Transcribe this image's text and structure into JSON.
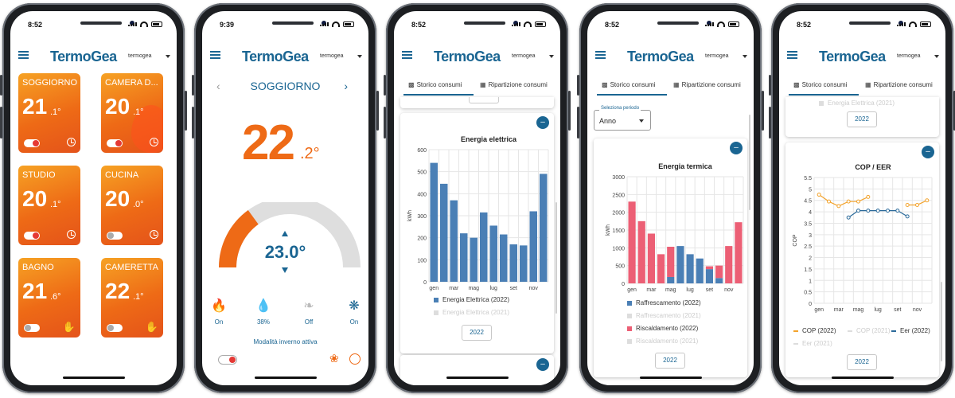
{
  "colors": {
    "brand": "#1a6592",
    "orange": "#ee6a16",
    "bar_blue": "#4a7fb5",
    "bar_pink": "#ec5f75",
    "line_orange": "#f3a32c",
    "line_blue": "#2b6a9a"
  },
  "app": {
    "logo": "TermoGea",
    "user": "termogea"
  },
  "phone1": {
    "time": "8:52",
    "rooms": [
      {
        "name": "SOGGIORNO",
        "temp": "21",
        "decimal": ".1°",
        "toggle": "on",
        "icon": "clock-icon"
      },
      {
        "name": "CAMERA D...",
        "temp": "20",
        "decimal": ".1°",
        "toggle": "on",
        "icon": "clock-icon"
      },
      {
        "name": "STUDIO",
        "temp": "20",
        "decimal": ".1°",
        "toggle": "on",
        "icon": "clock-icon"
      },
      {
        "name": "CUCINA",
        "temp": "20",
        "decimal": ".0°",
        "toggle": "off",
        "icon": "clock-icon"
      },
      {
        "name": "BAGNO",
        "temp": "21",
        "decimal": ".6°",
        "toggle": "off",
        "icon": "hand-icon"
      },
      {
        "name": "CAMERETTA",
        "temp": "22",
        "decimal": ".1°",
        "toggle": "off",
        "icon": "hand-icon"
      }
    ]
  },
  "phone2": {
    "time": "9:39",
    "room": "SOGGIORNO",
    "temp_int": "22",
    "temp_dec": ".2°",
    "setpoint": "23.0°",
    "setpoint_level": 0.3,
    "controls": [
      {
        "icon": "flame-icon",
        "label": "On"
      },
      {
        "icon": "droplet-icon",
        "label": "38%"
      },
      {
        "icon": "leaf-icon",
        "label": "Off"
      },
      {
        "icon": "fan-icon",
        "label": "On"
      }
    ],
    "mode": "Modalità inverno attiva"
  },
  "tabs": {
    "history": "Storico consumi",
    "breakdown": "Ripartizione consumi"
  },
  "phone3": {
    "time": "8:52",
    "year_button": "2022",
    "legend": [
      "Energia Elettrica (2022)",
      "Energia Elettrica (2021)"
    ],
    "chart_data": {
      "type": "bar",
      "title": "Energia elettrica",
      "ylabel": "kWh",
      "ylim": [
        0,
        600
      ],
      "yticks": [
        0,
        100,
        200,
        300,
        400,
        500,
        600
      ],
      "categories": [
        "gen",
        "feb",
        "mar",
        "apr",
        "mag",
        "giu",
        "lug",
        "ago",
        "set",
        "ott",
        "nov",
        "dic"
      ],
      "x_tick_labels": [
        "gen",
        "mar",
        "mag",
        "lug",
        "set",
        "nov"
      ],
      "series": [
        {
          "name": "Energia Elettrica (2022)",
          "values": [
            540,
            445,
            370,
            220,
            200,
            315,
            255,
            215,
            170,
            165,
            320,
            490
          ]
        }
      ]
    }
  },
  "phone4": {
    "time": "8:52",
    "period_label": "Seleziona periodo",
    "period_value": "Anno",
    "year_button": "2022",
    "legend": [
      "Raffrescamento (2022)",
      "Raffrescamento (2021)",
      "Riscaldamento (2022)",
      "Riscaldamento (2021)"
    ],
    "chart_data": {
      "type": "bar",
      "title": "Energia termica",
      "ylabel": "kWh",
      "ylim": [
        0,
        3000
      ],
      "yticks": [
        0,
        500,
        1000,
        1500,
        2000,
        2500,
        3000
      ],
      "categories": [
        "gen",
        "feb",
        "mar",
        "apr",
        "mag",
        "giu",
        "lug",
        "ago",
        "set",
        "ott",
        "nov",
        "dic"
      ],
      "x_tick_labels": [
        "gen",
        "mar",
        "mag",
        "lug",
        "set",
        "nov"
      ],
      "series": [
        {
          "name": "Raffrescamento (2022)",
          "values": [
            0,
            0,
            0,
            0,
            180,
            1050,
            820,
            700,
            400,
            150,
            0,
            0
          ]
        },
        {
          "name": "Riscaldamento (2022)",
          "values": [
            2300,
            1750,
            1400,
            820,
            850,
            0,
            0,
            0,
            80,
            350,
            1050,
            1720
          ]
        }
      ]
    }
  },
  "phone5": {
    "time": "8:52",
    "faded_legend": "Energia Elettrica (2021)",
    "top_year_button": "2022",
    "year_button": "2022",
    "legend": [
      "COP (2022)",
      "COP (2021)",
      "Eer (2022)",
      "Eer (2021)"
    ],
    "chart_data": {
      "type": "line",
      "title": "COP / EER",
      "ylabel": "COP",
      "ylim": [
        0,
        5.5
      ],
      "yticks": [
        0,
        0.5,
        1,
        1.5,
        2,
        2.5,
        3,
        3.5,
        4,
        4.5,
        5,
        5.5
      ],
      "categories": [
        "gen",
        "feb",
        "mar",
        "apr",
        "mag",
        "giu",
        "lug",
        "ago",
        "set",
        "ott",
        "nov",
        "dic"
      ],
      "x_tick_labels": [
        "gen",
        "mar",
        "mag",
        "lug",
        "set",
        "nov"
      ],
      "series": [
        {
          "name": "COP (2022)",
          "values": [
            4.75,
            4.45,
            4.25,
            4.45,
            4.45,
            4.65,
            null,
            null,
            null,
            4.3,
            4.3,
            4.5
          ]
        },
        {
          "name": "Eer (2022)",
          "values": [
            null,
            null,
            null,
            3.75,
            4.05,
            4.05,
            4.05,
            4.05,
            4.05,
            3.8,
            null,
            null
          ]
        }
      ]
    }
  }
}
